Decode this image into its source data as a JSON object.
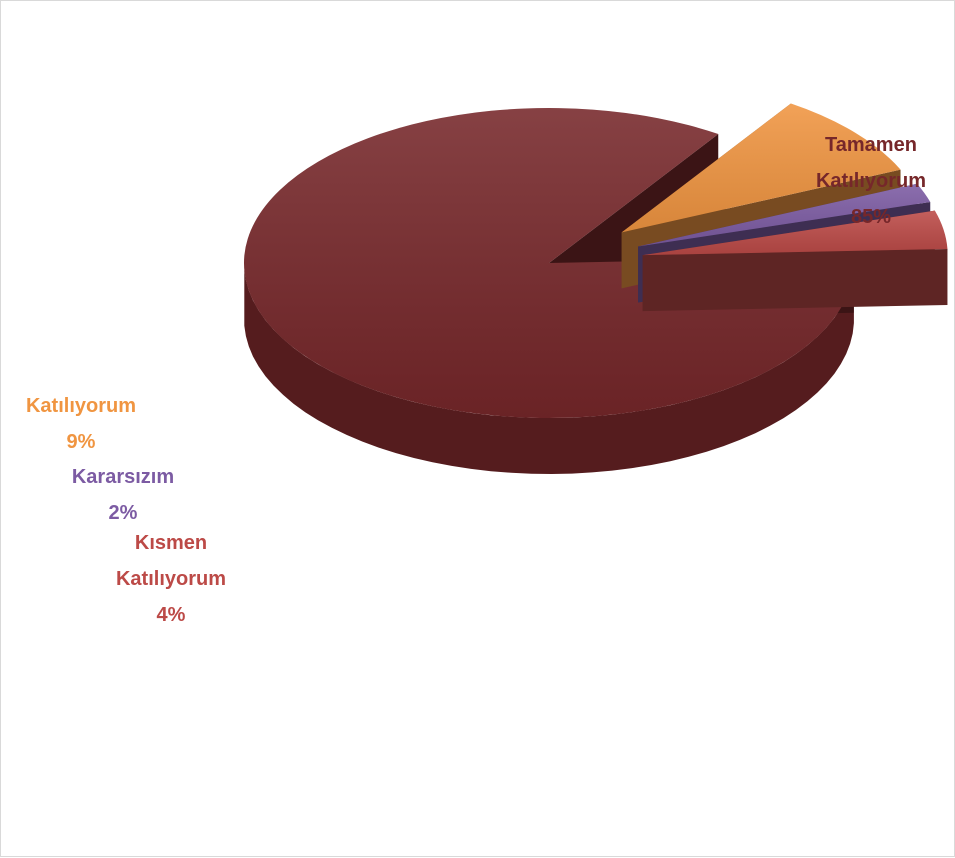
{
  "chart_data": {
    "type": "pie",
    "style": "3d-exploded",
    "series": [
      {
        "slices": [
          {
            "label": "Tamamen Katılıyorum",
            "label_lines": [
              "Tamamen",
              "Katılıyorum"
            ],
            "percent_label": "85%",
            "value": 85,
            "color": "#76272A"
          },
          {
            "label": "Katılıyorum",
            "label_lines": [
              "Katılıyorum"
            ],
            "percent_label": "9%",
            "value": 9,
            "color": "#F09541"
          },
          {
            "label": "Kararsızım",
            "label_lines": [
              "Kararsızım"
            ],
            "percent_label": "2%",
            "value": 2,
            "color": "#7C5BA3"
          },
          {
            "label": "Kısmen Katılıyorum",
            "label_lines": [
              "Kısmen",
              "Katılıyorum"
            ],
            "percent_label": "4%",
            "value": 4,
            "color": "#BC4A47"
          }
        ]
      }
    ],
    "legend": "none",
    "data_labels": "category-and-percent"
  }
}
